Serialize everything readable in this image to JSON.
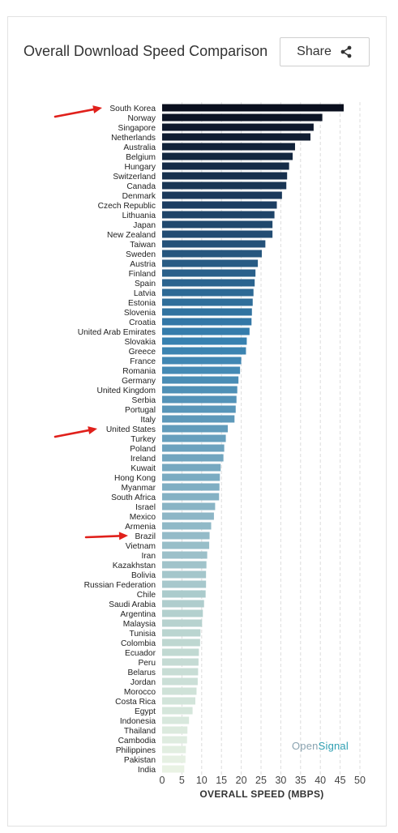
{
  "header": {
    "title": "Overall Download Speed Comparison",
    "share_label": "Share"
  },
  "watermark": {
    "part1": "Open",
    "part2": "Signal"
  },
  "icons": {
    "share": "share-icon",
    "annotation": "red-arrow-icon"
  },
  "colors": {
    "bar_dark": "#0a0f1e",
    "bar_light": "#e9f2e4",
    "arrow": "#e0201b",
    "grid": "#dcdcdc"
  },
  "chart_data": {
    "type": "bar",
    "orientation": "horizontal",
    "title": "Overall Download Speed Comparison",
    "xlabel": "OVERALL SPEED (MBPS)",
    "xlim": [
      0,
      50
    ],
    "xticks": [
      0,
      5,
      10,
      15,
      20,
      25,
      30,
      35,
      40,
      45,
      50
    ],
    "grid": "vertical dashed",
    "categories": [
      "South Korea",
      "Norway",
      "Singapore",
      "Netherlands",
      "Australia",
      "Belgium",
      "Hungary",
      "Switzerland",
      "Canada",
      "Denmark",
      "Czech Republic",
      "Lithuania",
      "Japan",
      "New Zealand",
      "Taiwan",
      "Sweden",
      "Austria",
      "Finland",
      "Spain",
      "Latvia",
      "Estonia",
      "Slovenia",
      "Croatia",
      "United Arab Emirates",
      "Slovakia",
      "Greece",
      "France",
      "Romania",
      "Germany",
      "United Kingdom",
      "Serbia",
      "Portugal",
      "Italy",
      "United States",
      "Turkey",
      "Poland",
      "Ireland",
      "Kuwait",
      "Hong Kong",
      "Myanmar",
      "South Africa",
      "Israel",
      "Mexico",
      "Armenia",
      "Brazil",
      "Vietnam",
      "Iran",
      "Kazakhstan",
      "Bolivia",
      "Russian Federation",
      "Chile",
      "Saudi Arabia",
      "Argentina",
      "Malaysia",
      "Tunisia",
      "Colombia",
      "Ecuador",
      "Peru",
      "Belarus",
      "Jordan",
      "Morocco",
      "Costa Rica",
      "Egypt",
      "Indonesia",
      "Thailand",
      "Cambodia",
      "Philippines",
      "Pakistan",
      "India"
    ],
    "values": [
      45.9,
      40.5,
      38.3,
      37.5,
      33.6,
      33.0,
      32.1,
      31.6,
      31.4,
      30.3,
      29.0,
      28.4,
      27.9,
      27.9,
      26.1,
      25.2,
      24.2,
      23.6,
      23.4,
      23.1,
      22.9,
      22.7,
      22.6,
      22.1,
      21.4,
      21.2,
      20.0,
      19.7,
      19.3,
      19.0,
      18.8,
      18.6,
      18.3,
      16.6,
      16.1,
      15.7,
      15.5,
      14.8,
      14.6,
      14.5,
      14.4,
      13.4,
      13.1,
      12.4,
      12.0,
      11.9,
      11.4,
      11.2,
      11.1,
      11.1,
      11.0,
      10.6,
      10.3,
      10.1,
      9.7,
      9.6,
      9.3,
      9.2,
      9.1,
      9.0,
      8.7,
      8.4,
      7.7,
      6.8,
      6.4,
      6.3,
      6.0,
      5.9,
      5.6
    ],
    "annotations": [
      {
        "type": "arrow",
        "target": "South Korea"
      },
      {
        "type": "arrow",
        "target": "United States"
      },
      {
        "type": "arrow",
        "target": "Brazil"
      }
    ]
  }
}
